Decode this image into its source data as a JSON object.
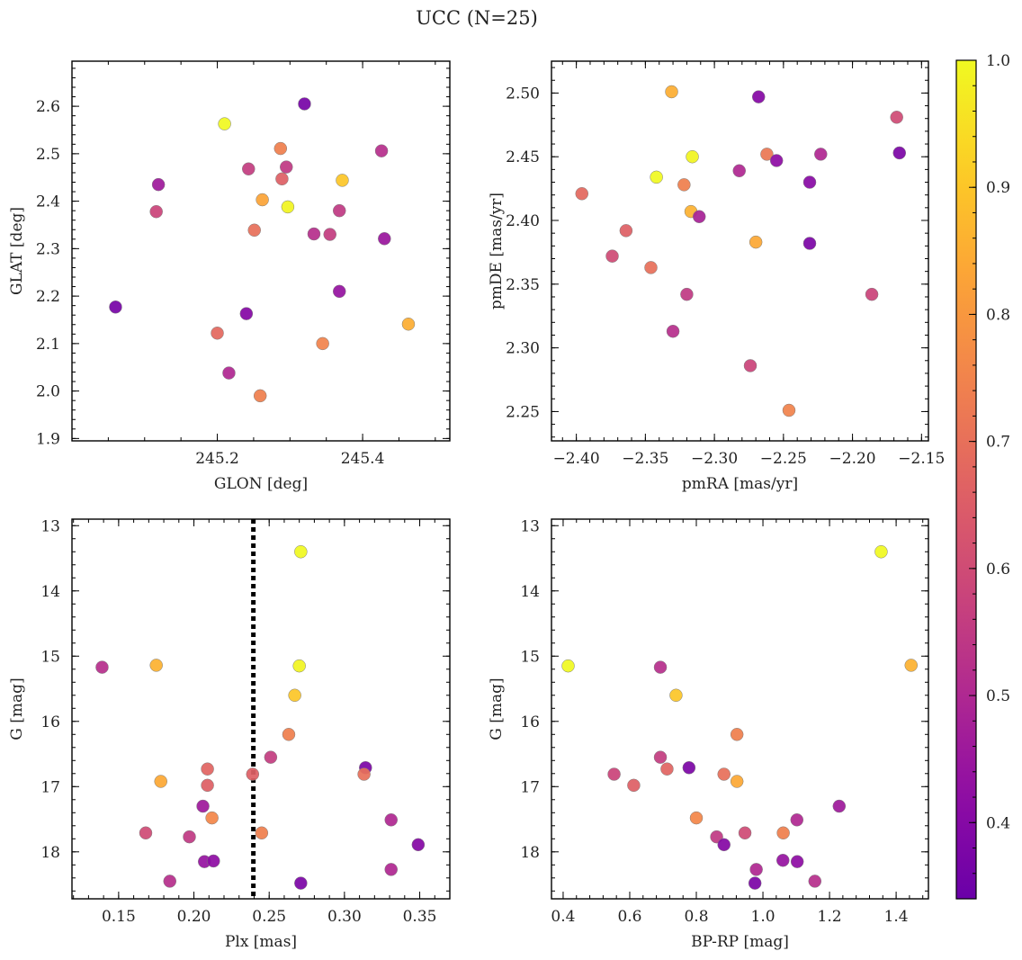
{
  "figure_title": "UCC (N=25)",
  "colorbar": {
    "min": 0.34,
    "max": 1.0,
    "ticks": [
      0.4,
      0.5,
      0.6,
      0.7,
      0.8,
      0.9,
      1.0
    ],
    "tick_labels": [
      "0.4",
      "0.5",
      "0.6",
      "0.7",
      "0.8",
      "0.9",
      "1.0"
    ],
    "colormap": "plasma"
  },
  "chart_data": [
    {
      "type": "scatter",
      "xlabel": "GLON [deg]",
      "ylabel": "GLAT [deg]",
      "xlim": [
        245.0,
        245.52
      ],
      "ylim": [
        1.895,
        2.695
      ],
      "xticks": [
        245.2,
        245.4
      ],
      "xtick_labels": [
        "245.2",
        "245.4"
      ],
      "yticks": [
        1.9,
        2.0,
        2.1,
        2.2,
        2.3,
        2.4,
        2.5,
        2.6
      ],
      "ytick_labels": [
        "1.9",
        "2.0",
        "2.1",
        "2.2",
        "2.3",
        "2.4",
        "2.5",
        "2.6"
      ],
      "points": [
        {
          "x": 245.32,
          "y": 2.605,
          "c": 0.37
        },
        {
          "x": 245.21,
          "y": 2.563,
          "c": 1.0
        },
        {
          "x": 245.287,
          "y": 2.511,
          "c": 0.74
        },
        {
          "x": 245.426,
          "y": 2.506,
          "c": 0.52
        },
        {
          "x": 245.295,
          "y": 2.472,
          "c": 0.55
        },
        {
          "x": 245.243,
          "y": 2.468,
          "c": 0.56
        },
        {
          "x": 245.289,
          "y": 2.447,
          "c": 0.66
        },
        {
          "x": 245.372,
          "y": 2.444,
          "c": 0.9
        },
        {
          "x": 245.119,
          "y": 2.435,
          "c": 0.46
        },
        {
          "x": 245.262,
          "y": 2.403,
          "c": 0.83
        },
        {
          "x": 245.297,
          "y": 2.388,
          "c": 0.99
        },
        {
          "x": 245.368,
          "y": 2.38,
          "c": 0.55
        },
        {
          "x": 245.116,
          "y": 2.378,
          "c": 0.58
        },
        {
          "x": 245.251,
          "y": 2.339,
          "c": 0.7
        },
        {
          "x": 245.333,
          "y": 2.331,
          "c": 0.52
        },
        {
          "x": 245.355,
          "y": 2.33,
          "c": 0.56
        },
        {
          "x": 245.43,
          "y": 2.321,
          "c": 0.45
        },
        {
          "x": 245.368,
          "y": 2.21,
          "c": 0.44
        },
        {
          "x": 245.06,
          "y": 2.177,
          "c": 0.37
        },
        {
          "x": 245.24,
          "y": 2.163,
          "c": 0.4
        },
        {
          "x": 245.463,
          "y": 2.141,
          "c": 0.85
        },
        {
          "x": 245.2,
          "y": 2.122,
          "c": 0.68
        },
        {
          "x": 245.345,
          "y": 2.1,
          "c": 0.75
        },
        {
          "x": 245.216,
          "y": 2.038,
          "c": 0.5
        },
        {
          "x": 245.259,
          "y": 1.99,
          "c": 0.74
        }
      ]
    },
    {
      "type": "scatter",
      "xlabel": "pmRA [mas/yr]",
      "ylabel": "pmDE [mas/yr]",
      "xlim": [
        -2.418,
        -2.145
      ],
      "ylim": [
        2.227,
        2.525
      ],
      "xticks": [
        -2.4,
        -2.35,
        -2.3,
        -2.25,
        -2.2,
        -2.15
      ],
      "xtick_labels": [
        "−2.40",
        "−2.35",
        "−2.30",
        "−2.25",
        "−2.20",
        "−2.15"
      ],
      "yticks": [
        2.25,
        2.3,
        2.35,
        2.4,
        2.45,
        2.5
      ],
      "ytick_labels": [
        "2.25",
        "2.30",
        "2.35",
        "2.40",
        "2.45",
        "2.50"
      ],
      "points": [
        {
          "x": -2.331,
          "y": 2.501,
          "c": 0.85
        },
        {
          "x": -2.268,
          "y": 2.497,
          "c": 0.4
        },
        {
          "x": -2.168,
          "y": 2.481,
          "c": 0.6
        },
        {
          "x": -2.262,
          "y": 2.452,
          "c": 0.72
        },
        {
          "x": -2.223,
          "y": 2.452,
          "c": 0.5
        },
        {
          "x": -2.166,
          "y": 2.453,
          "c": 0.38
        },
        {
          "x": -2.316,
          "y": 2.45,
          "c": 0.99
        },
        {
          "x": -2.255,
          "y": 2.447,
          "c": 0.42
        },
        {
          "x": -2.282,
          "y": 2.439,
          "c": 0.5
        },
        {
          "x": -2.342,
          "y": 2.434,
          "c": 1.0
        },
        {
          "x": -2.231,
          "y": 2.43,
          "c": 0.41
        },
        {
          "x": -2.322,
          "y": 2.428,
          "c": 0.74
        },
        {
          "x": -2.396,
          "y": 2.421,
          "c": 0.68
        },
        {
          "x": -2.317,
          "y": 2.407,
          "c": 0.86
        },
        {
          "x": -2.311,
          "y": 2.403,
          "c": 0.48
        },
        {
          "x": -2.364,
          "y": 2.392,
          "c": 0.66
        },
        {
          "x": -2.27,
          "y": 2.383,
          "c": 0.84
        },
        {
          "x": -2.231,
          "y": 2.382,
          "c": 0.38
        },
        {
          "x": -2.374,
          "y": 2.372,
          "c": 0.6
        },
        {
          "x": -2.346,
          "y": 2.363,
          "c": 0.7
        },
        {
          "x": -2.32,
          "y": 2.342,
          "c": 0.55
        },
        {
          "x": -2.186,
          "y": 2.342,
          "c": 0.58
        },
        {
          "x": -2.33,
          "y": 2.313,
          "c": 0.52
        },
        {
          "x": -2.274,
          "y": 2.286,
          "c": 0.58
        },
        {
          "x": -2.246,
          "y": 2.251,
          "c": 0.75
        }
      ]
    },
    {
      "type": "scatter",
      "xlabel": "Plx [mas]",
      "ylabel": "G [mag]",
      "xlim": [
        0.119,
        0.37
      ],
      "ylim": [
        18.72,
        12.9
      ],
      "y_inverted": true,
      "vline": {
        "x": 0.2395,
        "style": "dotted"
      },
      "xticks": [
        0.15,
        0.2,
        0.25,
        0.3,
        0.35
      ],
      "xtick_labels": [
        "0.15",
        "0.20",
        "0.25",
        "0.30",
        "0.35"
      ],
      "yticks": [
        13,
        14,
        15,
        16,
        17,
        18
      ],
      "ytick_labels": [
        "13",
        "14",
        "15",
        "16",
        "17",
        "18"
      ],
      "points": [
        {
          "x": 0.271,
          "y": 13.4,
          "c": 1.0
        },
        {
          "x": 0.139,
          "y": 15.17,
          "c": 0.52
        },
        {
          "x": 0.175,
          "y": 15.14,
          "c": 0.86
        },
        {
          "x": 0.27,
          "y": 15.15,
          "c": 0.99
        },
        {
          "x": 0.267,
          "y": 15.6,
          "c": 0.9
        },
        {
          "x": 0.263,
          "y": 16.2,
          "c": 0.74
        },
        {
          "x": 0.251,
          "y": 16.55,
          "c": 0.56
        },
        {
          "x": 0.209,
          "y": 16.73,
          "c": 0.67
        },
        {
          "x": 0.314,
          "y": 16.71,
          "c": 0.38
        },
        {
          "x": 0.239,
          "y": 16.81,
          "c": 0.66
        },
        {
          "x": 0.313,
          "y": 16.81,
          "c": 0.7
        },
        {
          "x": 0.178,
          "y": 16.92,
          "c": 0.84
        },
        {
          "x": 0.209,
          "y": 16.98,
          "c": 0.66
        },
        {
          "x": 0.206,
          "y": 17.3,
          "c": 0.46
        },
        {
          "x": 0.212,
          "y": 17.48,
          "c": 0.76
        },
        {
          "x": 0.331,
          "y": 17.51,
          "c": 0.5
        },
        {
          "x": 0.168,
          "y": 17.71,
          "c": 0.6
        },
        {
          "x": 0.245,
          "y": 17.71,
          "c": 0.74
        },
        {
          "x": 0.197,
          "y": 17.77,
          "c": 0.55
        },
        {
          "x": 0.349,
          "y": 17.89,
          "c": 0.4
        },
        {
          "x": 0.207,
          "y": 18.15,
          "c": 0.44
        },
        {
          "x": 0.213,
          "y": 18.14,
          "c": 0.42
        },
        {
          "x": 0.331,
          "y": 18.27,
          "c": 0.5
        },
        {
          "x": 0.184,
          "y": 18.45,
          "c": 0.52
        },
        {
          "x": 0.271,
          "y": 18.48,
          "c": 0.38
        }
      ]
    },
    {
      "type": "scatter",
      "xlabel": "BP-RP [mag]",
      "ylabel": "G [mag]",
      "xlim": [
        0.365,
        1.497
      ],
      "ylim": [
        18.72,
        12.9
      ],
      "y_inverted": true,
      "xticks": [
        0.4,
        0.6,
        0.8,
        1.0,
        1.2,
        1.4
      ],
      "xtick_labels": [
        "0.4",
        "0.6",
        "0.8",
        "1.0",
        "1.2",
        "1.4"
      ],
      "yticks": [
        13,
        14,
        15,
        16,
        17,
        18
      ],
      "ytick_labels": [
        "13",
        "14",
        "15",
        "16",
        "17",
        "18"
      ],
      "points": [
        {
          "x": 1.355,
          "y": 13.4,
          "c": 1.0
        },
        {
          "x": 0.415,
          "y": 15.15,
          "c": 1.0
        },
        {
          "x": 0.692,
          "y": 15.17,
          "c": 0.52
        },
        {
          "x": 1.445,
          "y": 15.14,
          "c": 0.86
        },
        {
          "x": 0.739,
          "y": 15.6,
          "c": 0.9
        },
        {
          "x": 0.922,
          "y": 16.2,
          "c": 0.74
        },
        {
          "x": 0.692,
          "y": 16.55,
          "c": 0.56
        },
        {
          "x": 0.778,
          "y": 16.71,
          "c": 0.38
        },
        {
          "x": 0.712,
          "y": 16.73,
          "c": 0.67
        },
        {
          "x": 0.553,
          "y": 16.81,
          "c": 0.58
        },
        {
          "x": 0.883,
          "y": 16.81,
          "c": 0.7
        },
        {
          "x": 0.922,
          "y": 16.92,
          "c": 0.84
        },
        {
          "x": 0.612,
          "y": 16.98,
          "c": 0.66
        },
        {
          "x": 1.229,
          "y": 17.3,
          "c": 0.46
        },
        {
          "x": 0.8,
          "y": 17.48,
          "c": 0.76
        },
        {
          "x": 1.102,
          "y": 17.51,
          "c": 0.5
        },
        {
          "x": 0.946,
          "y": 17.71,
          "c": 0.6
        },
        {
          "x": 1.061,
          "y": 17.71,
          "c": 0.74
        },
        {
          "x": 0.861,
          "y": 17.77,
          "c": 0.55
        },
        {
          "x": 0.883,
          "y": 17.89,
          "c": 0.4
        },
        {
          "x": 1.06,
          "y": 18.13,
          "c": 0.44
        },
        {
          "x": 1.103,
          "y": 18.15,
          "c": 0.42
        },
        {
          "x": 0.98,
          "y": 18.27,
          "c": 0.5
        },
        {
          "x": 1.156,
          "y": 18.45,
          "c": 0.52
        },
        {
          "x": 0.976,
          "y": 18.48,
          "c": 0.38
        }
      ]
    }
  ]
}
